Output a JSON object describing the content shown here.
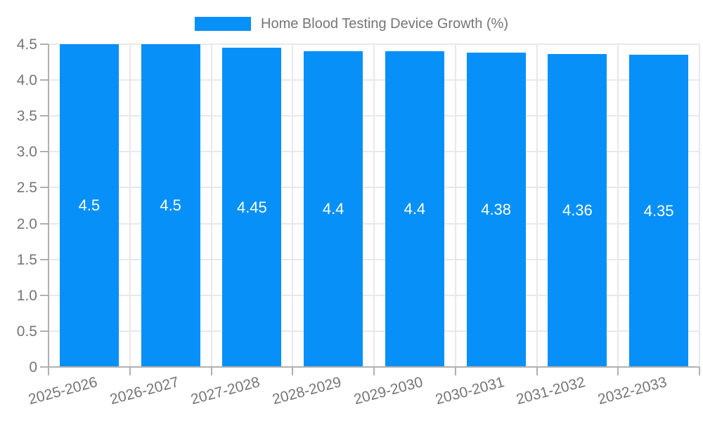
{
  "chart_data": {
    "type": "bar",
    "title": "Home Blood Testing Device Growth (%)",
    "categories": [
      "2025-2026",
      "2026-2027",
      "2027-2028",
      "2028-2029",
      "2029-2030",
      "2030-2031",
      "2031-2032",
      "2032-2033"
    ],
    "values": [
      4.5,
      4.5,
      4.45,
      4.4,
      4.4,
      4.38,
      4.36,
      4.35
    ],
    "value_labels": [
      "4.5",
      "4.5",
      "4.45",
      "4.4",
      "4.4",
      "4.38",
      "4.36",
      "4.35"
    ],
    "xlabel": "",
    "ylabel": "",
    "ylim": [
      0,
      4.5
    ],
    "ytick_step": 0.5,
    "ytick_labels": [
      "0",
      "0.5",
      "1.0",
      "1.5",
      "2.0",
      "2.5",
      "3.0",
      "3.5",
      "4.0",
      "4.5"
    ],
    "grid": "on",
    "legend_position": "top-center",
    "colors": {
      "bar": "#0690f8",
      "bar_label_text": "#ffffff",
      "axis_text": "#757575",
      "gridline": "#e8e8e8",
      "axis_line": "#b0b0b0"
    }
  }
}
